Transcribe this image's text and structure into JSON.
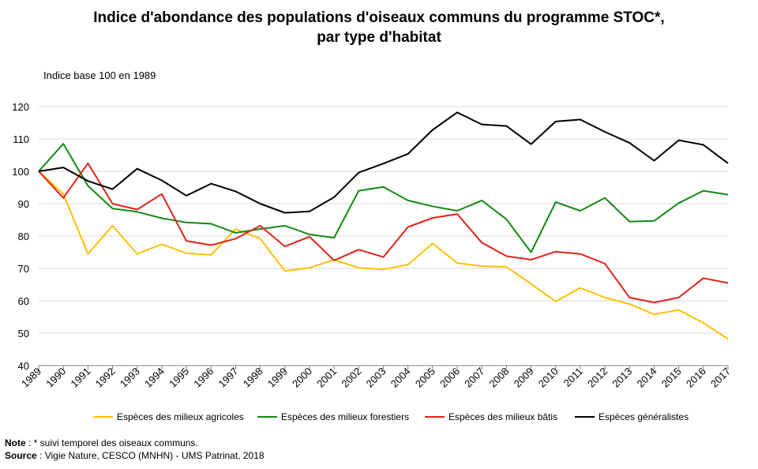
{
  "chart_data": {
    "type": "line",
    "title_line1": "Indice d'abondance des populations d'oiseaux communs du programme STOC*,",
    "title_line2": "par type d'habitat",
    "ylabel": "Indice base 100 en 1989",
    "ylim": [
      40,
      120
    ],
    "yticks": [
      40,
      50,
      60,
      70,
      80,
      90,
      100,
      110,
      120
    ],
    "grid": true,
    "legend_position": "bottom",
    "x": [
      "1989",
      "1990",
      "1991",
      "1992",
      "1993",
      "1994",
      "1995",
      "1996",
      "1997",
      "1998",
      "1999",
      "2000",
      "2001",
      "2002",
      "2003",
      "2004",
      "2005",
      "2006",
      "2007",
      "2008",
      "2009",
      "2010",
      "2011",
      "2012",
      "2013",
      "2014",
      "2015",
      "2016",
      "2017"
    ],
    "series": [
      {
        "name": "Espèces des milieux agricoles",
        "color": "#ffc000",
        "values": [
          100,
          93,
          74.5,
          83.2,
          74.5,
          77.5,
          74.7,
          74.2,
          82.2,
          79.2,
          69.2,
          70.2,
          72.7,
          70.2,
          69.7,
          71.2,
          77.7,
          71.7,
          70.7,
          70.5,
          65.2,
          59.8,
          64,
          61,
          59,
          55.8,
          57.2,
          53.2,
          48.2
        ]
      },
      {
        "name": "Espèces des milieux forestiers",
        "color": "#138a13",
        "values": [
          100,
          108.5,
          95.5,
          88.5,
          87.5,
          85.5,
          84.2,
          83.8,
          81,
          82.2,
          83.2,
          80.5,
          79.5,
          94,
          95.2,
          91,
          89.2,
          87.8,
          91,
          85.2,
          75,
          90.5,
          87.8,
          91.8,
          84.5,
          84.7,
          90.2,
          94,
          92.8
        ]
      },
      {
        "name": "Espèces des milieux bâtis",
        "color": "#e32219",
        "values": [
          100,
          91.8,
          102.5,
          90,
          88.2,
          93,
          78.5,
          77.2,
          79.2,
          83.2,
          76.8,
          79.8,
          72.5,
          75.8,
          73.5,
          82.8,
          85.6,
          86.8,
          78,
          73.8,
          72.7,
          75.2,
          74.5,
          71.5,
          61,
          59.5,
          61,
          67,
          65.5
        ]
      },
      {
        "name": "Espèces généralistes",
        "color": "#000000",
        "values": [
          100,
          101.2,
          97,
          94.5,
          100.8,
          97.2,
          92.5,
          96.2,
          93.8,
          90,
          87.2,
          87.6,
          92,
          99.6,
          102.4,
          105.4,
          112.8,
          118.2,
          114.5,
          114,
          108.4,
          115.4,
          116,
          112.2,
          108.8,
          103.3,
          109.6,
          108.2,
          102.5
        ]
      }
    ]
  },
  "notes": {
    "note_label": "Note",
    "note_text": " : * suivi temporel  des oiseaux communs.",
    "source_label": "Source",
    "source_text": " : Vigie Nature, CESCO (MNHN)  - UMS Patrinat, 2018"
  }
}
